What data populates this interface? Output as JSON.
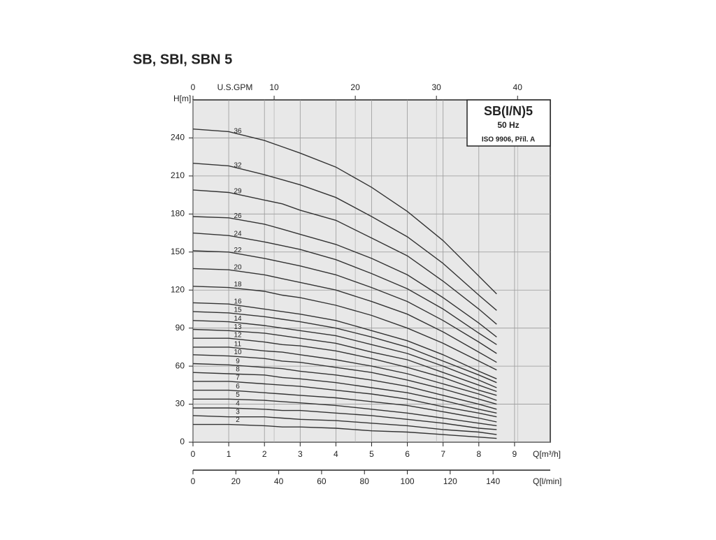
{
  "chart_data": {
    "type": "line",
    "title": "SB, SBI, SBN 5",
    "box_title": "SB(I/N)5",
    "box_subtitle": "50 Hz",
    "box_note": "ISO 9906, Příl. A",
    "y_label": "H[m]",
    "x_label": "Q[m³/h]",
    "x2_label": "U.S.GPM",
    "x3_label": "Q[l/min]",
    "xlim": [
      0,
      10
    ],
    "xticks": [
      0,
      1,
      2,
      3,
      4,
      5,
      6,
      7,
      8,
      9
    ],
    "x2lim": [
      0,
      44.03
    ],
    "x2ticks": [
      0,
      10,
      20,
      30,
      40
    ],
    "x3lim": [
      0,
      166.7
    ],
    "x3ticks": [
      0,
      20,
      40,
      60,
      80,
      100,
      120,
      140
    ],
    "ylim": [
      0,
      270
    ],
    "yticks": [
      0,
      30,
      60,
      90,
      120,
      150,
      180,
      210,
      240
    ],
    "grid": true,
    "color": "#333333",
    "x": [
      0,
      1,
      2,
      2.5,
      3,
      4,
      5,
      6,
      7,
      8,
      8.5
    ],
    "series": [
      {
        "name": "2",
        "values": [
          14,
          14,
          13,
          12,
          12,
          11,
          9,
          8,
          6,
          4,
          3
        ]
      },
      {
        "name": "3",
        "values": [
          21,
          20,
          20,
          19,
          18,
          17,
          15,
          13,
          10,
          8,
          6
        ]
      },
      {
        "name": "4",
        "values": [
          27,
          27,
          26,
          25,
          25,
          23,
          21,
          18,
          15,
          11,
          10
        ]
      },
      {
        "name": "5",
        "values": [
          34,
          34,
          33,
          32,
          31,
          29,
          26,
          23,
          19,
          15,
          13
        ]
      },
      {
        "name": "6",
        "values": [
          41,
          41,
          39,
          38,
          37,
          35,
          32,
          29,
          24,
          19,
          16
        ]
      },
      {
        "name": "7",
        "values": [
          48,
          48,
          46,
          45,
          44,
          41,
          38,
          34,
          28,
          23,
          20
        ]
      },
      {
        "name": "8",
        "values": [
          55,
          54,
          53,
          51,
          50,
          47,
          43,
          39,
          33,
          26,
          23
        ]
      },
      {
        "name": "9",
        "values": [
          62,
          61,
          59,
          58,
          56,
          53,
          49,
          44,
          37,
          30,
          26
        ]
      },
      {
        "name": "10",
        "values": [
          69,
          68,
          66,
          64,
          63,
          59,
          55,
          49,
          42,
          34,
          30
        ]
      },
      {
        "name": "11",
        "values": [
          75,
          75,
          72,
          71,
          69,
          65,
          60,
          54,
          46,
          38,
          33
        ]
      },
      {
        "name": "12",
        "values": [
          82,
          82,
          79,
          77,
          76,
          72,
          66,
          59,
          51,
          41,
          37
        ]
      },
      {
        "name": "13",
        "values": [
          89,
          88,
          86,
          84,
          82,
          78,
          71,
          65,
          55,
          45,
          40
        ]
      },
      {
        "name": "14",
        "values": [
          96,
          95,
          92,
          90,
          88,
          84,
          77,
          70,
          60,
          49,
          43
        ]
      },
      {
        "name": "15",
        "values": [
          103,
          102,
          99,
          97,
          95,
          90,
          83,
          75,
          64,
          53,
          47
        ]
      },
      {
        "name": "16",
        "values": [
          110,
          109,
          105,
          103,
          101,
          96,
          88,
          80,
          69,
          56,
          50
        ]
      },
      {
        "name": "18",
        "values": [
          123,
          122,
          119,
          116,
          114,
          108,
          100,
          90,
          78,
          64,
          57
        ]
      },
      {
        "name": "20",
        "values": [
          137,
          136,
          132,
          129,
          126,
          120,
          111,
          101,
          87,
          71,
          63
        ]
      },
      {
        "name": "22",
        "values": [
          151,
          150,
          145,
          142,
          139,
          132,
          122,
          111,
          96,
          79,
          70
        ]
      },
      {
        "name": "24",
        "values": [
          165,
          163,
          158,
          155,
          152,
          144,
          133,
          121,
          105,
          86,
          77
        ]
      },
      {
        "name": "26",
        "values": [
          178,
          177,
          172,
          168,
          164,
          156,
          145,
          132,
          114,
          94,
          83
        ]
      },
      {
        "name": "29",
        "values": [
          199,
          197,
          191,
          188,
          183,
          175,
          161,
          147,
          127,
          105,
          93
        ]
      },
      {
        "name": "32",
        "values": [
          220,
          218,
          211,
          207,
          203,
          193,
          178,
          162,
          141,
          116,
          104
        ]
      },
      {
        "name": "36",
        "values": [
          247,
          245,
          238,
          233,
          228,
          217,
          201,
          182,
          159,
          131,
          117
        ]
      }
    ]
  }
}
